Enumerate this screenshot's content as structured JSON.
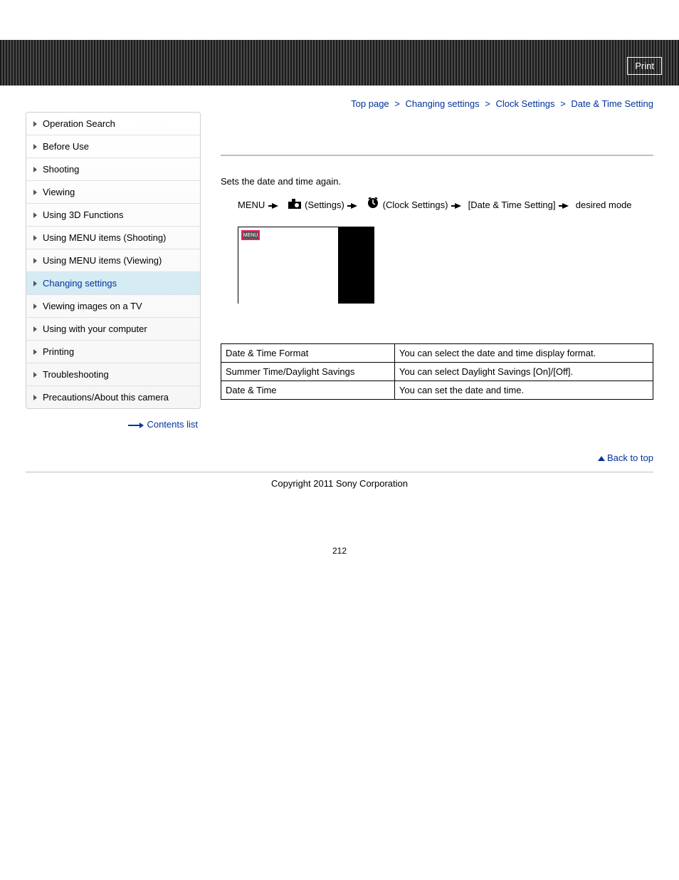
{
  "header": {
    "print_label": "Print"
  },
  "breadcrumbs": {
    "items": [
      {
        "label": "Top page"
      },
      {
        "label": "Changing settings"
      },
      {
        "label": "Clock Settings"
      },
      {
        "label": "Date & Time Setting"
      }
    ],
    "sep": ">"
  },
  "sidebar": {
    "items": [
      {
        "label": "Operation Search",
        "active": false
      },
      {
        "label": "Before Use",
        "active": false
      },
      {
        "label": "Shooting",
        "active": false
      },
      {
        "label": "Viewing",
        "active": false
      },
      {
        "label": "Using 3D Functions",
        "active": false
      },
      {
        "label": "Using MENU items (Shooting)",
        "active": false
      },
      {
        "label": "Using MENU items (Viewing)",
        "active": false
      },
      {
        "label": "Changing settings",
        "active": true
      },
      {
        "label": "Viewing images on a TV",
        "active": false
      },
      {
        "label": "Using with your computer",
        "active": false
      },
      {
        "label": "Printing",
        "active": false
      },
      {
        "label": "Troubleshooting",
        "active": false
      },
      {
        "label": "Precautions/About this camera",
        "active": false
      }
    ],
    "contents_list_label": "Contents list"
  },
  "content": {
    "intro": "Sets the date and time again.",
    "path": {
      "menu": "MENU",
      "settings": "(Settings)",
      "clock": "(Clock Settings)",
      "item": "[Date & Time Setting]",
      "desired": "desired mode"
    },
    "thumb_menu_label": "MENU",
    "table": {
      "rows": [
        {
          "name": "Date & Time Format",
          "desc": "You can select the date and time display format."
        },
        {
          "name": "Summer Time/Daylight Savings",
          "desc": "You can select Daylight Savings [On]/[Off]."
        },
        {
          "name": "Date & Time",
          "desc": "You can set the date and time."
        }
      ]
    }
  },
  "footer": {
    "back_to_top": "Back to top",
    "copyright": "Copyright 2011 Sony Corporation",
    "page_number": "212"
  },
  "colors": {
    "link": "#003399",
    "active_bg": "#d6ecf5",
    "border": "#d0d0d0",
    "rule": "#bfbfbf"
  }
}
